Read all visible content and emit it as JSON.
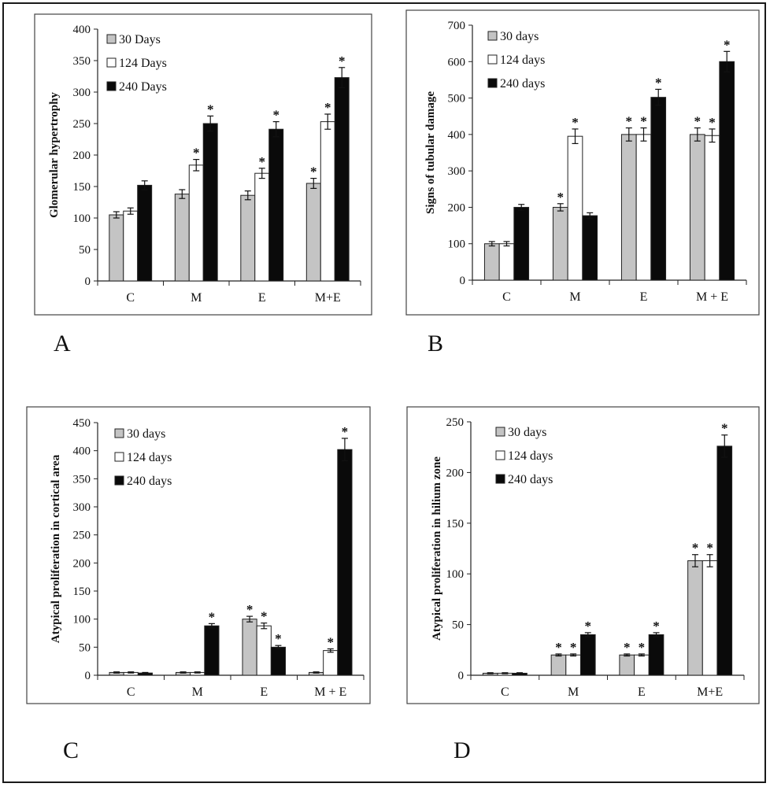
{
  "colors": {
    "30": "#c4c4c4",
    "124": "#ffffff",
    "240": "#0a0a0a",
    "axis": "#222222"
  },
  "chart_data": [
    {
      "panel": "A",
      "type": "bar",
      "ylabel": "Glomerular hypertrophy",
      "ylim": [
        0,
        400
      ],
      "ytick_step": 50,
      "yticks": [
        "0",
        "50",
        "100",
        "150",
        "200",
        "250",
        "300",
        "350",
        "400"
      ],
      "categories": [
        "C",
        "M",
        "E",
        "M+E"
      ],
      "series": [
        {
          "name": "30 Days",
          "values": [
            105,
            138,
            136,
            155
          ],
          "errors": [
            5,
            7,
            7,
            8
          ],
          "sig": [
            false,
            false,
            false,
            true
          ]
        },
        {
          "name": "124 Days",
          "values": [
            111,
            184,
            171,
            253
          ],
          "errors": [
            5,
            9,
            8,
            12
          ],
          "sig": [
            false,
            true,
            true,
            true
          ]
        },
        {
          "name": "240 Days",
          "values": [
            152,
            250,
            241,
            323
          ],
          "errors": [
            7,
            12,
            12,
            16
          ],
          "sig": [
            false,
            true,
            true,
            true
          ]
        }
      ]
    },
    {
      "panel": "B",
      "type": "bar",
      "ylabel": "Signs of tubular damage",
      "ylim": [
        0,
        700
      ],
      "ytick_step": 100,
      "yticks": [
        "0",
        "100",
        "200",
        "300",
        "400",
        "500",
        "600",
        "700"
      ],
      "categories": [
        "C",
        "M",
        "E",
        "M + E"
      ],
      "series": [
        {
          "name": "30 days",
          "values": [
            100,
            200,
            400,
            400
          ],
          "errors": [
            6,
            10,
            18,
            18
          ],
          "sig": [
            false,
            true,
            true,
            true
          ]
        },
        {
          "name": "124 days",
          "values": [
            100,
            395,
            400,
            397
          ],
          "errors": [
            6,
            20,
            18,
            18
          ],
          "sig": [
            false,
            true,
            true,
            true
          ]
        },
        {
          "name": "240 days",
          "values": [
            200,
            177,
            502,
            600
          ],
          "errors": [
            8,
            8,
            22,
            28
          ],
          "sig": [
            false,
            false,
            true,
            true
          ]
        }
      ]
    },
    {
      "panel": "C",
      "type": "bar",
      "ylabel": "Atypical proliferation in cortical area",
      "ylim": [
        0,
        450
      ],
      "ytick_step": 50,
      "yticks": [
        "0",
        "50",
        "100",
        "150",
        "200",
        "250",
        "300",
        "350",
        "400",
        "450"
      ],
      "categories": [
        "C",
        "M",
        "E",
        "M + E"
      ],
      "series": [
        {
          "name": "30 days",
          "values": [
            5,
            5,
            100,
            5
          ],
          "errors": [
            1,
            1,
            5,
            1
          ],
          "sig": [
            false,
            false,
            true,
            false
          ]
        },
        {
          "name": "124 days",
          "values": [
            5,
            5,
            88,
            44
          ],
          "errors": [
            1,
            1,
            5,
            3
          ],
          "sig": [
            false,
            false,
            true,
            true
          ]
        },
        {
          "name": "240 days",
          "values": [
            4,
            88,
            50,
            402
          ],
          "errors": [
            1,
            4,
            3,
            20
          ],
          "sig": [
            false,
            true,
            true,
            true
          ]
        }
      ]
    },
    {
      "panel": "D",
      "type": "bar",
      "ylabel": "Atypical proliferation in hilium zone",
      "ylim": [
        0,
        250
      ],
      "ytick_step": 50,
      "yticks": [
        "0",
        "50",
        "100",
        "150",
        "200",
        "250"
      ],
      "categories": [
        "C",
        "M",
        "E",
        "M+E"
      ],
      "series": [
        {
          "name": "30 days",
          "values": [
            2,
            20,
            20,
            113
          ],
          "errors": [
            0.5,
            1,
            1,
            6
          ],
          "sig": [
            false,
            true,
            true,
            true
          ]
        },
        {
          "name": "124 days",
          "values": [
            2,
            20,
            20,
            113
          ],
          "errors": [
            0.5,
            1,
            1,
            6
          ],
          "sig": [
            false,
            true,
            true,
            true
          ]
        },
        {
          "name": "240 days",
          "values": [
            2,
            40,
            40,
            226
          ],
          "errors": [
            0.5,
            2,
            2,
            11
          ],
          "sig": [
            false,
            true,
            true,
            true
          ]
        }
      ]
    }
  ],
  "panel_labels": [
    "A",
    "B",
    "C",
    "D"
  ]
}
